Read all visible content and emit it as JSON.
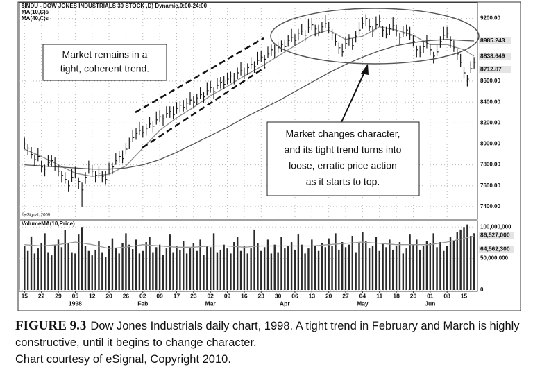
{
  "chart_data": {
    "type": "ohlc",
    "title": "$INDU - DOW JONES INDUSTRIALS 30 STOCK ,D) Dynamic,0:00-24:00",
    "copyright": "©eSignal, 2009",
    "color": "#1a1a1a",
    "xlim": [
      -1.5,
      134
    ],
    "xticks": [
      {
        "value": 0,
        "label": "15"
      },
      {
        "value": 5,
        "label": "22"
      },
      {
        "value": 10,
        "label": "29"
      },
      {
        "value": 15,
        "label": "05"
      },
      {
        "value": 20,
        "label": "12"
      },
      {
        "value": 25,
        "label": "20"
      },
      {
        "value": 30,
        "label": "26"
      },
      {
        "value": 35,
        "label": "02"
      },
      {
        "value": 40,
        "label": "09"
      },
      {
        "value": 45,
        "label": "17"
      },
      {
        "value": 50,
        "label": "23"
      },
      {
        "value": 55,
        "label": "02"
      },
      {
        "value": 60,
        "label": "09"
      },
      {
        "value": 65,
        "label": "16"
      },
      {
        "value": 70,
        "label": "23"
      },
      {
        "value": 75,
        "label": "30"
      },
      {
        "value": 80,
        "label": "06"
      },
      {
        "value": 85,
        "label": "13"
      },
      {
        "value": 90,
        "label": "20"
      },
      {
        "value": 95,
        "label": "27"
      },
      {
        "value": 100,
        "label": "04"
      },
      {
        "value": 105,
        "label": "11"
      },
      {
        "value": 110,
        "label": "18"
      },
      {
        "value": 115,
        "label": "26"
      },
      {
        "value": 120,
        "label": "01"
      },
      {
        "value": 125,
        "label": "08"
      },
      {
        "value": 130,
        "label": "15"
      }
    ],
    "month_ticks": [
      {
        "value": 15,
        "label": "1998"
      },
      {
        "value": 35,
        "label": "Feb"
      },
      {
        "value": 55,
        "label": "Mar"
      },
      {
        "value": 77,
        "label": "Apr"
      },
      {
        "value": 100,
        "label": "May"
      },
      {
        "value": 120,
        "label": "Jun"
      }
    ],
    "ylim": [
      7280,
      9350
    ],
    "yticks": [
      {
        "value": 7400,
        "label": "7400.00"
      },
      {
        "value": 7600,
        "label": "7600.00"
      },
      {
        "value": 7800,
        "label": "7800.00"
      },
      {
        "value": 8000,
        "label": "8000.00"
      },
      {
        "value": 8200,
        "label": "8200.00"
      },
      {
        "value": 8400,
        "label": "8400.00"
      },
      {
        "value": 8600,
        "label": "8600.00"
      },
      {
        "value": 9200,
        "label": "9200.00"
      }
    ],
    "marker_labels": [
      {
        "value": 8985.243,
        "label": "8985.243"
      },
      {
        "value": 8838.649,
        "label": "8838.649"
      },
      {
        "value": 8712.87,
        "label": "8712.87"
      }
    ],
    "high": [
      8060,
      8000,
      7970,
      7900,
      7960,
      7840,
      7800,
      7890,
      7890,
      7870,
      7800,
      7740,
      7730,
      7650,
      7760,
      7780,
      7680,
      7630,
      7730,
      7840,
      7800,
      7740,
      7790,
      7740,
      7740,
      7820,
      7820,
      7910,
      7930,
      7940,
      8010,
      8060,
      8130,
      8150,
      8210,
      8170,
      8190,
      8260,
      8220,
      8310,
      8320,
      8280,
      8360,
      8360,
      8360,
      8400,
      8410,
      8420,
      8440,
      8500,
      8460,
      8480,
      8540,
      8500,
      8590,
      8600,
      8540,
      8630,
      8640,
      8650,
      8680,
      8690,
      8680,
      8730,
      8780,
      8730,
      8770,
      8830,
      8790,
      8880,
      8890,
      8850,
      8930,
      8950,
      8950,
      8980,
      8990,
      9000,
      9040,
      9100,
      9050,
      9100,
      9150,
      9090,
      9190,
      9200,
      9140,
      9140,
      9170,
      9230,
      9170,
      9100,
      9050,
      8970,
      8960,
      9020,
      9050,
      9010,
      9080,
      9170,
      9210,
      9240,
      9190,
      9130,
      9220,
      9230,
      9130,
      9120,
      9150,
      9210,
      9140,
      9060,
      9130,
      9140,
      9120,
      9040,
      8940,
      8940,
      8980,
      9040,
      8960,
      8880,
      8950,
      9030,
      9120,
      9120,
      9030,
      8990,
      8910,
      8860,
      8740,
      8660,
      8790,
      8830
    ],
    "low": [
      7950,
      7890,
      7860,
      7790,
      7835,
      7730,
      7690,
      7780,
      7780,
      7745,
      7690,
      7630,
      7620,
      7540,
      7635,
      7670,
      7570,
      7400,
      7620,
      7715,
      7690,
      7630,
      7680,
      7630,
      7615,
      7710,
      7710,
      7800,
      7820,
      7815,
      7900,
      7950,
      8020,
      8040,
      8085,
      8060,
      8080,
      8150,
      8110,
      8185,
      8210,
      8170,
      8250,
      8250,
      8235,
      8290,
      8300,
      8310,
      8330,
      8375,
      8350,
      8370,
      8430,
      8390,
      8465,
      8490,
      8430,
      8520,
      8530,
      8525,
      8570,
      8580,
      8570,
      8620,
      8655,
      8620,
      8660,
      8720,
      8680,
      8755,
      8780,
      8740,
      8820,
      8840,
      8825,
      8870,
      8880,
      8890,
      8930,
      8975,
      8940,
      8990,
      9040,
      8980,
      9065,
      9090,
      9030,
      9030,
      9060,
      9105,
      9060,
      8990,
      8940,
      8860,
      8835,
      8910,
      8940,
      8900,
      8970,
      9045,
      9100,
      9130,
      9080,
      9020,
      9095,
      9120,
      9020,
      9010,
      9040,
      9085,
      9030,
      8950,
      9020,
      9030,
      8995,
      8930,
      8830,
      8830,
      8870,
      8915,
      8850,
      8770,
      8840,
      8920,
      8995,
      9010,
      8920,
      8880,
      8800,
      8735,
      8630,
      8550,
      8680,
      8720
    ],
    "close": [
      8000,
      7960,
      7900,
      7850,
      7880,
      7780,
      7760,
      7820,
      7840,
      7790,
      7740,
      7700,
      7660,
      7600,
      7680,
      7720,
      7640,
      7560,
      7680,
      7760,
      7740,
      7700,
      7720,
      7690,
      7660,
      7760,
      7780,
      7840,
      7880,
      7860,
      7950,
      8020,
      8060,
      8100,
      8130,
      8110,
      8150,
      8190,
      8170,
      8230,
      8260,
      8240,
      8290,
      8310,
      8280,
      8340,
      8370,
      8350,
      8390,
      8420,
      8400,
      8440,
      8470,
      8450,
      8510,
      8540,
      8500,
      8560,
      8590,
      8570,
      8620,
      8650,
      8610,
      8680,
      8700,
      8670,
      8730,
      8760,
      8740,
      8800,
      8830,
      8810,
      8860,
      8900,
      8870,
      8920,
      8950,
      8930,
      8990,
      9020,
      8990,
      9060,
      9080,
      9040,
      9110,
      9140,
      9100,
      9070,
      9120,
      9150,
      9110,
      9060,
      8980,
      8920,
      8880,
      8960,
      9010,
      8940,
      9030,
      9090,
      9150,
      9200,
      9120,
      9080,
      9140,
      9170,
      9090,
      9050,
      9100,
      9130,
      9080,
      9020,
      9060,
      9090,
      9040,
      8980,
      8900,
      8870,
      8930,
      8960,
      8900,
      8840,
      8880,
      8980,
      9040,
      9060,
      8990,
      8920,
      8860,
      8780,
      8680,
      8620,
      8720,
      8780
    ],
    "series": [
      {
        "name": "MA(10,C)s",
        "color": "#8a8a8a",
        "x": [
          0,
          5,
          10,
          15,
          20,
          25,
          30,
          35,
          40,
          45,
          50,
          55,
          60,
          65,
          70,
          75,
          80,
          85,
          90,
          95,
          100,
          105,
          110,
          115,
          120,
          125,
          130,
          133
        ],
        "values": [
          7950,
          7880,
          7800,
          7720,
          7690,
          7710,
          7790,
          7960,
          8130,
          8250,
          8350,
          8460,
          8550,
          8650,
          8740,
          8840,
          8940,
          9040,
          9090,
          9000,
          9030,
          9120,
          9090,
          9040,
          8950,
          8950,
          8900,
          8839
        ]
      },
      {
        "name": "MA(40,C)s",
        "color": "#555555",
        "x": [
          0,
          5,
          10,
          15,
          20,
          25,
          30,
          35,
          40,
          45,
          50,
          55,
          60,
          65,
          70,
          75,
          80,
          85,
          90,
          95,
          100,
          105,
          110,
          115,
          120,
          125,
          130,
          133
        ],
        "values": [
          7800,
          7790,
          7780,
          7770,
          7760,
          7760,
          7770,
          7800,
          7850,
          7920,
          8000,
          8080,
          8160,
          8250,
          8330,
          8410,
          8500,
          8590,
          8680,
          8760,
          8830,
          8890,
          8940,
          8970,
          8990,
          9000,
          8990,
          8985
        ]
      }
    ],
    "volume": {
      "title": "VolumeMA(10,Price)",
      "color": "#2a2a2a",
      "ylim": [
        0,
        108000000
      ],
      "yticks": [
        0,
        {
          "value": 50000000,
          "label": "50,000,000"
        },
        {
          "value": 100000000,
          "label": "100,000,000"
        }
      ],
      "marker_labels": [
        {
          "value": 86527000,
          "label": "86,527,000"
        },
        {
          "value": 64562300,
          "label": "64,562,300"
        }
      ],
      "values": [
        70000000,
        62000000,
        85000000,
        58000000,
        66000000,
        75000000,
        90000000,
        60000000,
        55000000,
        72000000,
        80000000,
        68000000,
        95000000,
        74000000,
        60000000,
        58000000,
        88000000,
        100000000,
        70000000,
        62000000,
        55000000,
        64000000,
        78000000,
        60000000,
        52000000,
        70000000,
        82000000,
        66000000,
        58000000,
        74000000,
        90000000,
        72000000,
        65000000,
        80000000,
        58000000,
        62000000,
        76000000,
        84000000,
        60000000,
        68000000,
        72000000,
        56000000,
        66000000,
        88000000,
        60000000,
        70000000,
        64000000,
        78000000,
        58000000,
        66000000,
        74000000,
        62000000,
        80000000,
        56000000,
        70000000,
        68000000,
        90000000,
        60000000,
        64000000,
        72000000,
        66000000,
        58000000,
        76000000,
        84000000,
        62000000,
        70000000,
        58000000,
        66000000,
        96000000,
        74000000,
        62000000,
        68000000,
        80000000,
        58000000,
        72000000,
        60000000,
        84000000,
        66000000,
        70000000,
        76000000,
        64000000,
        88000000,
        72000000,
        58000000,
        66000000,
        80000000,
        70000000,
        62000000,
        74000000,
        68000000,
        82000000,
        70000000,
        90000000,
        64000000,
        76000000,
        68000000,
        72000000,
        86000000,
        60000000,
        74000000,
        92000000,
        78000000,
        66000000,
        70000000,
        84000000,
        62000000,
        74000000,
        68000000,
        80000000,
        64000000,
        70000000,
        76000000,
        58000000,
        66000000,
        88000000,
        72000000,
        80000000,
        64000000,
        70000000,
        78000000,
        74000000,
        90000000,
        68000000,
        76000000,
        62000000,
        70000000,
        84000000,
        78000000,
        92000000,
        96000000,
        100000000,
        104000000,
        86000000,
        90000000
      ],
      "ma": {
        "color": "#9a9a9a",
        "x": [
          0,
          5,
          10,
          15,
          20,
          25,
          30,
          35,
          40,
          45,
          50,
          55,
          60,
          65,
          70,
          75,
          80,
          85,
          90,
          95,
          100,
          105,
          110,
          115,
          120,
          125,
          130,
          133
        ],
        "values": [
          72000000,
          70000000,
          72000000,
          76000000,
          72000000,
          66000000,
          68000000,
          72000000,
          70000000,
          68000000,
          68000000,
          70000000,
          70000000,
          68000000,
          70000000,
          70000000,
          70000000,
          70000000,
          72000000,
          74000000,
          76000000,
          74000000,
          72000000,
          72000000,
          72000000,
          76000000,
          82000000,
          86000000
        ]
      }
    }
  },
  "annotations": [
    {
      "lines": [
        "Market remains in a",
        "tight, coherent trend."
      ]
    },
    {
      "lines": [
        "Market changes character,",
        "and its tight trend turns into",
        "loose, erratic price action",
        "as it starts to top."
      ]
    }
  ],
  "caption": {
    "label": "FIGURE 9.3",
    "text": "Dow Jones Industrials daily chart, 1998. A tight trend in February and March is highly constructive, until it begins to change character.",
    "credit": "Chart courtesy of eSignal, Copyright 2010."
  }
}
